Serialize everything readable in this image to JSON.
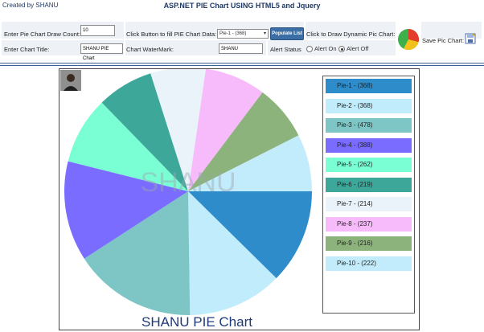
{
  "header": {
    "created_by": "Created by SHANU",
    "title": "ASP.NET PIE Chart USING HTML5 and Jquery"
  },
  "form": {
    "draw_count_label": "Enter Pie Chart Draw Count:",
    "draw_count_value": "10",
    "fill_label": "Click Button to fill PIE Chart Data:",
    "select_value": "Pie-1 - (368)",
    "populate_button": "Populate List",
    "dynamic_label": "Click to Draw Dynamic Pic Chart:",
    "save_label": "Save Pic Chart:",
    "chart_title_label": "Enter Chart Title:",
    "chart_title_value": "SHANU PIE Chart",
    "watermark_label": "Chart WaterMark:",
    "watermark_value": "SHANU",
    "alert_status_label": "Alert Status",
    "alert_on_label": "Alert On",
    "alert_off_label": "Alert Off"
  },
  "chart_data": {
    "type": "pie",
    "title": "SHANU PIE Chart",
    "watermark": "SHANU",
    "slices": [
      {
        "label": "Pie-1 - (368)",
        "value": 368,
        "color": "#2e8ccb"
      },
      {
        "label": "Pie-2 - (368)",
        "value": 368,
        "color": "#c0ecfb"
      },
      {
        "label": "Pie-3 - (478)",
        "value": 478,
        "color": "#7ec6c6"
      },
      {
        "label": "Pie-4 - (388)",
        "value": 388,
        "color": "#7a6cff"
      },
      {
        "label": "Pie-5 - (262)",
        "value": 262,
        "color": "#7affd4"
      },
      {
        "label": "Pie-6 - (219)",
        "value": 219,
        "color": "#3da89a"
      },
      {
        "label": "Pie-7 - (214)",
        "value": 214,
        "color": "#ebf3fa"
      },
      {
        "label": "Pie-8 - (237)",
        "value": 237,
        "color": "#f7bbfb"
      },
      {
        "label": "Pie-9 - (216)",
        "value": 216,
        "color": "#8db37c"
      },
      {
        "label": "Pie-10 - (222)",
        "value": 222,
        "color": "#c2ecfb"
      }
    ],
    "legend_position": "right"
  }
}
